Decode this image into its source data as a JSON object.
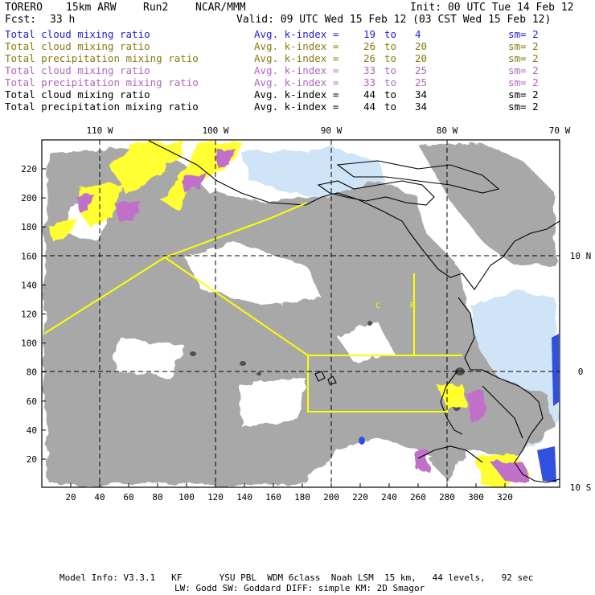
{
  "header": {
    "model": "TORERO",
    "resolution": "15km ARW",
    "run": "Run2",
    "org": "NCAR/MMM",
    "init": "Init: 00 UTC Tue 14 Feb 12",
    "fcst_label": "Fcst:",
    "fcst_value": "33 h",
    "valid": "Valid: 09 UTC Wed 15 Feb 12 (03 CST Wed 15 Feb 12)"
  },
  "legend": [
    {
      "field": "Total cloud mixing ratio",
      "avg": "Avg. k-index =",
      "v1": "19",
      "to": "to",
      "v2": "4",
      "sm": "sm= 2",
      "color": "#1f1fd0"
    },
    {
      "field": "Total cloud mixing ratio",
      "avg": "Avg. k-index =",
      "v1": "26",
      "to": "to",
      "v2": "20",
      "sm": "sm= 2",
      "color": "#8a7a10"
    },
    {
      "field": "Total precipitation mixing ratio",
      "avg": "Avg. k-index =",
      "v1": "26",
      "to": "to",
      "v2": "20",
      "sm": "sm= 2",
      "color": "#8a7a10"
    },
    {
      "field": "Total cloud mixing ratio",
      "avg": "Avg. k-index =",
      "v1": "33",
      "to": "to",
      "v2": "25",
      "sm": "sm= 2",
      "color": "#b065c0"
    },
    {
      "field": "Total precipitation mixing ratio",
      "avg": "Avg. k-index =",
      "v1": "33",
      "to": "to",
      "v2": "25",
      "sm": "sm= 2",
      "color": "#b065c0"
    },
    {
      "field": "Total cloud mixing ratio",
      "avg": "Avg. k-index =",
      "v1": "44",
      "to": "to",
      "v2": "34",
      "sm": "sm= 2",
      "color": "#000000"
    },
    {
      "field": "Total precipitation mixing ratio",
      "avg": "Avg. k-index =",
      "v1": "44",
      "to": "to",
      "v2": "34",
      "sm": "sm= 2",
      "color": "#000000"
    }
  ],
  "map": {
    "lon_labels": [
      "110 W",
      "100 W",
      "90 W",
      "80 W",
      "70 W"
    ],
    "lat_labels": [
      "10 N",
      "0",
      "10 S"
    ],
    "x_ticks": [
      "20",
      "40",
      "60",
      "80",
      "100",
      "120",
      "140",
      "160",
      "180",
      "200",
      "220",
      "240",
      "260",
      "280",
      "300",
      "320"
    ],
    "y_ticks": [
      "20",
      "40",
      "60",
      "80",
      "100",
      "120",
      "140",
      "160",
      "180",
      "200",
      "220"
    ],
    "region_labels": [
      "C",
      "R"
    ],
    "colors": {
      "cloud_gray": "#a8a8a8",
      "dark_gray": "#505050",
      "yellow": "#ffff33",
      "purple": "#c070c8",
      "light_blue": "#cfe4f7",
      "blue": "#3050e0",
      "boundary": "#ffff00"
    }
  },
  "footer": {
    "line1": "Model Info: V3.3.1   KF       YSU PBL  WDM 6class  Noah LSM  15 km,   44 levels,   92 sec",
    "line2": "LW: Godd SW: Goddard DIFF: simple KM: 2D Smagor"
  }
}
